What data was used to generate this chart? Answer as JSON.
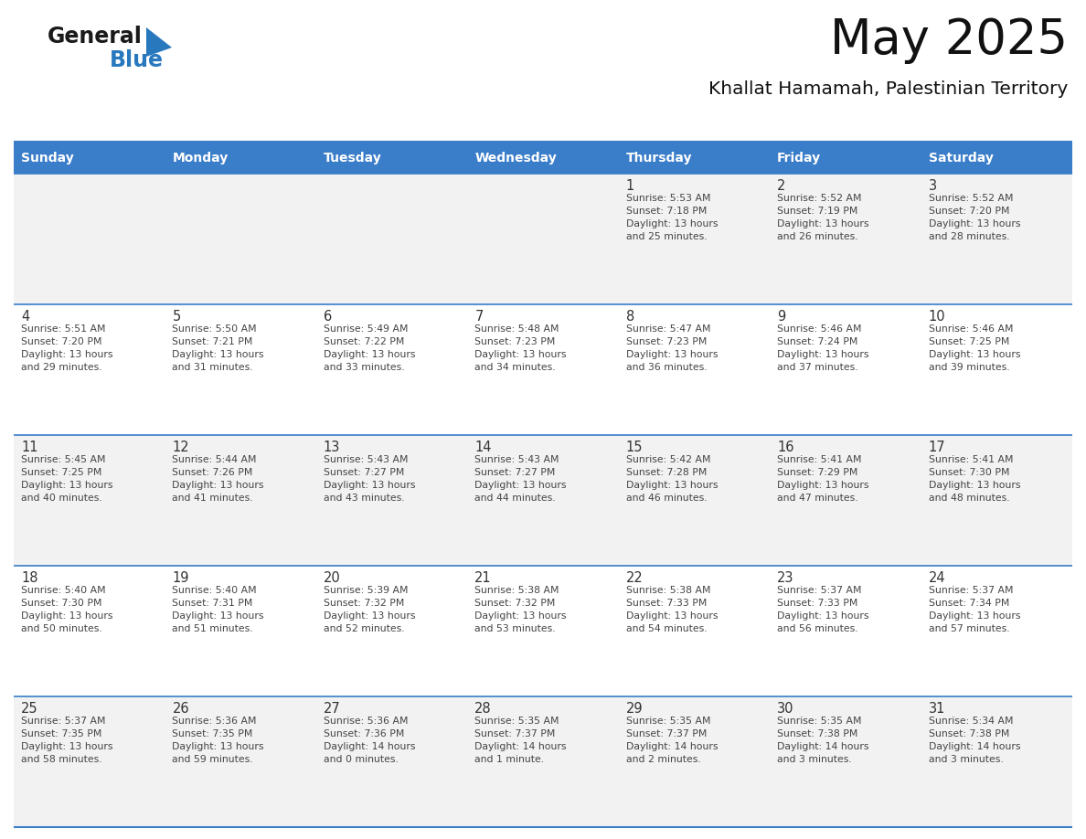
{
  "title": "May 2025",
  "subtitle": "Khallat Hamamah, Palestinian Territory",
  "days_of_week": [
    "Sunday",
    "Monday",
    "Tuesday",
    "Wednesday",
    "Thursday",
    "Friday",
    "Saturday"
  ],
  "header_bg": "#3A7DC9",
  "header_text": "#FFFFFF",
  "row_bg_odd": "#F2F2F2",
  "row_bg_even": "#FFFFFF",
  "cell_text_color": "#444444",
  "date_number_color": "#333333",
  "divider_color": "#3A7DC9",
  "logo_general_color": "#1a1a1a",
  "logo_blue_color": "#2878be",
  "calendar_data": [
    [
      {
        "day": null,
        "info": null
      },
      {
        "day": null,
        "info": null
      },
      {
        "day": null,
        "info": null
      },
      {
        "day": null,
        "info": null
      },
      {
        "day": 1,
        "info": "Sunrise: 5:53 AM\nSunset: 7:18 PM\nDaylight: 13 hours\nand 25 minutes."
      },
      {
        "day": 2,
        "info": "Sunrise: 5:52 AM\nSunset: 7:19 PM\nDaylight: 13 hours\nand 26 minutes."
      },
      {
        "day": 3,
        "info": "Sunrise: 5:52 AM\nSunset: 7:20 PM\nDaylight: 13 hours\nand 28 minutes."
      }
    ],
    [
      {
        "day": 4,
        "info": "Sunrise: 5:51 AM\nSunset: 7:20 PM\nDaylight: 13 hours\nand 29 minutes."
      },
      {
        "day": 5,
        "info": "Sunrise: 5:50 AM\nSunset: 7:21 PM\nDaylight: 13 hours\nand 31 minutes."
      },
      {
        "day": 6,
        "info": "Sunrise: 5:49 AM\nSunset: 7:22 PM\nDaylight: 13 hours\nand 33 minutes."
      },
      {
        "day": 7,
        "info": "Sunrise: 5:48 AM\nSunset: 7:23 PM\nDaylight: 13 hours\nand 34 minutes."
      },
      {
        "day": 8,
        "info": "Sunrise: 5:47 AM\nSunset: 7:23 PM\nDaylight: 13 hours\nand 36 minutes."
      },
      {
        "day": 9,
        "info": "Sunrise: 5:46 AM\nSunset: 7:24 PM\nDaylight: 13 hours\nand 37 minutes."
      },
      {
        "day": 10,
        "info": "Sunrise: 5:46 AM\nSunset: 7:25 PM\nDaylight: 13 hours\nand 39 minutes."
      }
    ],
    [
      {
        "day": 11,
        "info": "Sunrise: 5:45 AM\nSunset: 7:25 PM\nDaylight: 13 hours\nand 40 minutes."
      },
      {
        "day": 12,
        "info": "Sunrise: 5:44 AM\nSunset: 7:26 PM\nDaylight: 13 hours\nand 41 minutes."
      },
      {
        "day": 13,
        "info": "Sunrise: 5:43 AM\nSunset: 7:27 PM\nDaylight: 13 hours\nand 43 minutes."
      },
      {
        "day": 14,
        "info": "Sunrise: 5:43 AM\nSunset: 7:27 PM\nDaylight: 13 hours\nand 44 minutes."
      },
      {
        "day": 15,
        "info": "Sunrise: 5:42 AM\nSunset: 7:28 PM\nDaylight: 13 hours\nand 46 minutes."
      },
      {
        "day": 16,
        "info": "Sunrise: 5:41 AM\nSunset: 7:29 PM\nDaylight: 13 hours\nand 47 minutes."
      },
      {
        "day": 17,
        "info": "Sunrise: 5:41 AM\nSunset: 7:30 PM\nDaylight: 13 hours\nand 48 minutes."
      }
    ],
    [
      {
        "day": 18,
        "info": "Sunrise: 5:40 AM\nSunset: 7:30 PM\nDaylight: 13 hours\nand 50 minutes."
      },
      {
        "day": 19,
        "info": "Sunrise: 5:40 AM\nSunset: 7:31 PM\nDaylight: 13 hours\nand 51 minutes."
      },
      {
        "day": 20,
        "info": "Sunrise: 5:39 AM\nSunset: 7:32 PM\nDaylight: 13 hours\nand 52 minutes."
      },
      {
        "day": 21,
        "info": "Sunrise: 5:38 AM\nSunset: 7:32 PM\nDaylight: 13 hours\nand 53 minutes."
      },
      {
        "day": 22,
        "info": "Sunrise: 5:38 AM\nSunset: 7:33 PM\nDaylight: 13 hours\nand 54 minutes."
      },
      {
        "day": 23,
        "info": "Sunrise: 5:37 AM\nSunset: 7:33 PM\nDaylight: 13 hours\nand 56 minutes."
      },
      {
        "day": 24,
        "info": "Sunrise: 5:37 AM\nSunset: 7:34 PM\nDaylight: 13 hours\nand 57 minutes."
      }
    ],
    [
      {
        "day": 25,
        "info": "Sunrise: 5:37 AM\nSunset: 7:35 PM\nDaylight: 13 hours\nand 58 minutes."
      },
      {
        "day": 26,
        "info": "Sunrise: 5:36 AM\nSunset: 7:35 PM\nDaylight: 13 hours\nand 59 minutes."
      },
      {
        "day": 27,
        "info": "Sunrise: 5:36 AM\nSunset: 7:36 PM\nDaylight: 14 hours\nand 0 minutes."
      },
      {
        "day": 28,
        "info": "Sunrise: 5:35 AM\nSunset: 7:37 PM\nDaylight: 14 hours\nand 1 minute."
      },
      {
        "day": 29,
        "info": "Sunrise: 5:35 AM\nSunset: 7:37 PM\nDaylight: 14 hours\nand 2 minutes."
      },
      {
        "day": 30,
        "info": "Sunrise: 5:35 AM\nSunset: 7:38 PM\nDaylight: 14 hours\nand 3 minutes."
      },
      {
        "day": 31,
        "info": "Sunrise: 5:34 AM\nSunset: 7:38 PM\nDaylight: 14 hours\nand 3 minutes."
      }
    ]
  ]
}
